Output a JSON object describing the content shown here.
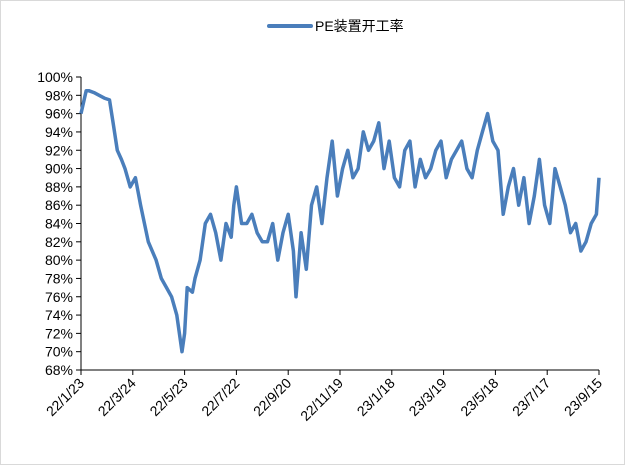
{
  "chart_data": {
    "type": "line",
    "title": "",
    "xlabel": "",
    "ylabel": "",
    "legend_position": "top-center",
    "grid": false,
    "line_color": "#4a7ebb",
    "ylim": [
      68,
      100
    ],
    "y_ticks": [
      "68%",
      "70%",
      "72%",
      "74%",
      "76%",
      "78%",
      "80%",
      "82%",
      "84%",
      "86%",
      "88%",
      "90%",
      "92%",
      "94%",
      "96%",
      "98%",
      "100%"
    ],
    "x_ticks": [
      "22/1/23",
      "22/3/24",
      "22/5/23",
      "22/7/22",
      "22/9/20",
      "22/11/19",
      "23/1/18",
      "23/3/19",
      "23/5/18",
      "23/7/17",
      "23/9/15"
    ],
    "series": [
      {
        "name": "PE装置开工率",
        "x": [
          0,
          0.1,
          0.15,
          0.25,
          0.35,
          0.45,
          0.55,
          0.62,
          0.7,
          0.78,
          0.85,
          0.95,
          1.05,
          1.15,
          1.3,
          1.45,
          1.55,
          1.65,
          1.75,
          1.85,
          1.95,
          2.0,
          2.05,
          2.15,
          2.2,
          2.3,
          2.4,
          2.5,
          2.6,
          2.7,
          2.8,
          2.9,
          2.95,
          3.0,
          3.1,
          3.2,
          3.3,
          3.4,
          3.5,
          3.6,
          3.7,
          3.8,
          3.9,
          4.0,
          4.1,
          4.15,
          4.25,
          4.35,
          4.45,
          4.55,
          4.65,
          4.75,
          4.85,
          4.95,
          5.05,
          5.15,
          5.25,
          5.35,
          5.45,
          5.55,
          5.65,
          5.75,
          5.85,
          5.95,
          6.05,
          6.15,
          6.25,
          6.35,
          6.45,
          6.55,
          6.65,
          6.75,
          6.85,
          6.95,
          7.05,
          7.15,
          7.25,
          7.35,
          7.45,
          7.55,
          7.65,
          7.75,
          7.85,
          7.95,
          8.05,
          8.15,
          8.25,
          8.35,
          8.45,
          8.55,
          8.65,
          8.75,
          8.85,
          8.95,
          9.05,
          9.15,
          9.25,
          9.35,
          9.45,
          9.55,
          9.65,
          9.75,
          9.85,
          9.95,
          10.0
        ],
        "values": [
          96,
          98.5,
          98.5,
          98.3,
          98,
          97.7,
          97.5,
          95,
          92,
          91,
          90,
          88,
          89,
          86,
          82,
          80,
          78,
          77,
          76,
          74,
          70,
          72,
          77,
          76.5,
          78,
          80,
          84,
          85,
          83,
          80,
          84,
          82.5,
          86,
          88,
          84,
          84,
          85,
          83,
          82,
          82,
          84,
          80,
          83,
          85,
          81,
          76,
          83,
          79,
          86,
          88,
          84,
          89,
          93,
          87,
          90,
          92,
          89,
          90,
          94,
          92,
          93,
          95,
          90,
          93,
          89,
          88,
          92,
          93,
          88,
          91,
          89,
          90,
          92,
          93,
          89,
          91,
          92,
          93,
          90,
          89,
          92,
          94,
          96,
          93,
          92,
          85,
          88,
          90,
          86,
          89,
          84,
          87,
          91,
          86,
          84,
          90,
          88,
          86,
          83,
          84,
          81,
          82,
          84,
          85,
          89
        ]
      }
    ]
  }
}
